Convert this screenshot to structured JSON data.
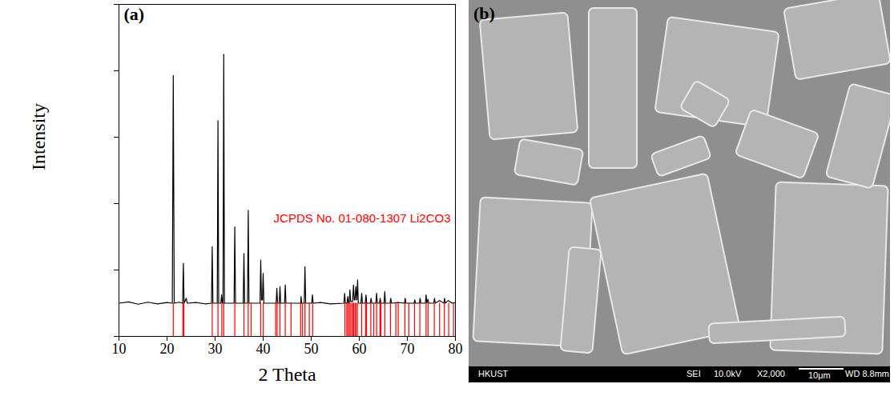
{
  "chart_data": {
    "type": "line",
    "panel_label": "(a)",
    "x_label": "2 Theta",
    "y_label": "Intensity",
    "xlim": [
      10,
      80
    ],
    "xticks": [
      10,
      20,
      30,
      40,
      50,
      60,
      70,
      80
    ],
    "ylim": [
      0,
      100
    ],
    "yticks": [
      0,
      20,
      40,
      60,
      80,
      100
    ],
    "tick_labels": "x",
    "series": [
      {
        "type": "line",
        "color": "#000000",
        "x": [
          10,
          12,
          14,
          16,
          18,
          20,
          21.1,
          21.3,
          21.5,
          22.5,
          23.25,
          23.4,
          23.55,
          24.0,
          24.2,
          26,
          28,
          29.25,
          29.4,
          29.55,
          30.45,
          30.6,
          30.75,
          31.2,
          31.35,
          31.5,
          31.65,
          31.8,
          31.95,
          33.95,
          34.1,
          34.25,
          35.85,
          36.0,
          36.15,
          36.75,
          36.9,
          37.05,
          39.35,
          39.5,
          39.65,
          39.85,
          40.0,
          40.15,
          42.7,
          42.85,
          43.0,
          43.35,
          43.5,
          43.65,
          44.45,
          44.6,
          44.75,
          47.8,
          47.9,
          48.0,
          48.55,
          48.7,
          48.85,
          50.1,
          50.25,
          50.4,
          52,
          54,
          56.8,
          56.95,
          57.1,
          57.45,
          57.6,
          57.75,
          57.9,
          58.05,
          58.2,
          58.6,
          58.8,
          58.95,
          59.1,
          59.3,
          59.45,
          59.5,
          59.65,
          59.8,
          60.35,
          60.5,
          60.65,
          61.25,
          61.4,
          61.55,
          62.3,
          62.45,
          62.6,
          63.45,
          63.6,
          63.75,
          64.2,
          64.35,
          64.5,
          65.15,
          65.3,
          65.45,
          66.4,
          66.55,
          66.7,
          68,
          69.4,
          69.55,
          69.7,
          71.4,
          71.55,
          71.7,
          72.5,
          72.65,
          72.8,
          73.75,
          73.9,
          74.05,
          74.3,
          74.45,
          75.5,
          75.65,
          75.8,
          76.7,
          77.6,
          77.75,
          77.9,
          78.5,
          79.3,
          80
        ],
        "values": [
          10,
          10.4,
          9.7,
          10.3,
          9.8,
          10.2,
          10,
          78.6,
          10,
          10.3,
          10,
          22,
          10,
          11.5,
          10,
          10.2,
          9.8,
          10,
          27,
          10,
          10,
          65,
          10,
          10,
          12.5,
          10,
          10,
          85,
          10,
          10,
          33,
          10,
          10,
          25,
          10,
          10,
          38,
          10,
          10,
          23,
          11,
          11,
          19,
          10,
          10,
          14.5,
          10,
          10,
          15,
          10,
          10,
          15.5,
          10,
          10,
          12,
          10,
          10,
          21,
          10,
          10,
          12.5,
          10,
          10.2,
          9.8,
          10,
          13,
          10,
          10,
          12,
          10,
          10,
          14,
          10.5,
          10.5,
          15.5,
          11,
          11,
          15,
          11,
          11,
          17,
          10,
          10,
          13,
          10,
          10,
          12.5,
          10,
          10,
          11.5,
          10,
          10,
          13,
          10,
          10,
          11.5,
          10,
          10,
          13.5,
          10,
          10,
          11.5,
          10,
          10.2,
          10,
          11.5,
          10,
          10,
          11,
          10,
          10,
          11.5,
          10,
          10,
          12.5,
          10,
          11.2,
          10,
          10,
          11.5,
          10,
          10.8,
          10,
          11.5,
          10,
          10.8,
          10,
          10.2
        ]
      },
      {
        "type": "stick",
        "name": "JCPDS No. 01-080-1307 Li2CO3",
        "color": "#ff0000",
        "x": [
          21.3,
          23.3,
          23.5,
          29.4,
          30.6,
          31.4,
          31.8,
          34.1,
          36.0,
          36.9,
          37.5,
          39.5,
          40.0,
          42.6,
          42.9,
          43.5,
          44.6,
          45.8,
          47.8,
          48.2,
          48.7,
          49.6,
          50.3,
          57.0,
          57.4,
          57.6,
          57.9,
          58.1,
          58.4,
          58.7,
          58.8,
          59.1,
          59.3,
          59.6,
          60.5,
          61.3,
          61.5,
          62.4,
          63.0,
          63.6,
          64.3,
          64.5,
          65.3,
          66.5,
          67.6,
          68.1,
          69.5,
          70.3,
          71.5,
          72.6,
          73.9,
          74.3,
          75.6,
          76.7,
          77.7,
          78.6,
          79.6
        ],
        "values": [
          10,
          10,
          10,
          10,
          10,
          10,
          10,
          10,
          10,
          10,
          10,
          10,
          10,
          10,
          10,
          10,
          10,
          10,
          10,
          10,
          10,
          10,
          10,
          10,
          10,
          10,
          10,
          10,
          10,
          10,
          10,
          10,
          10,
          10,
          10,
          10,
          10,
          10,
          10,
          10,
          10,
          10,
          10,
          10,
          10,
          10,
          10,
          10,
          10,
          10,
          10,
          10,
          10,
          10,
          10,
          10,
          10
        ]
      }
    ]
  },
  "image": {
    "panel_label": "(b)",
    "info_bar": {
      "left": "HKUST",
      "items": [
        "SEI",
        "10.0kV",
        "X2,000"
      ],
      "scale_bar": "10μm",
      "right": "WD 8.8mm"
    }
  }
}
